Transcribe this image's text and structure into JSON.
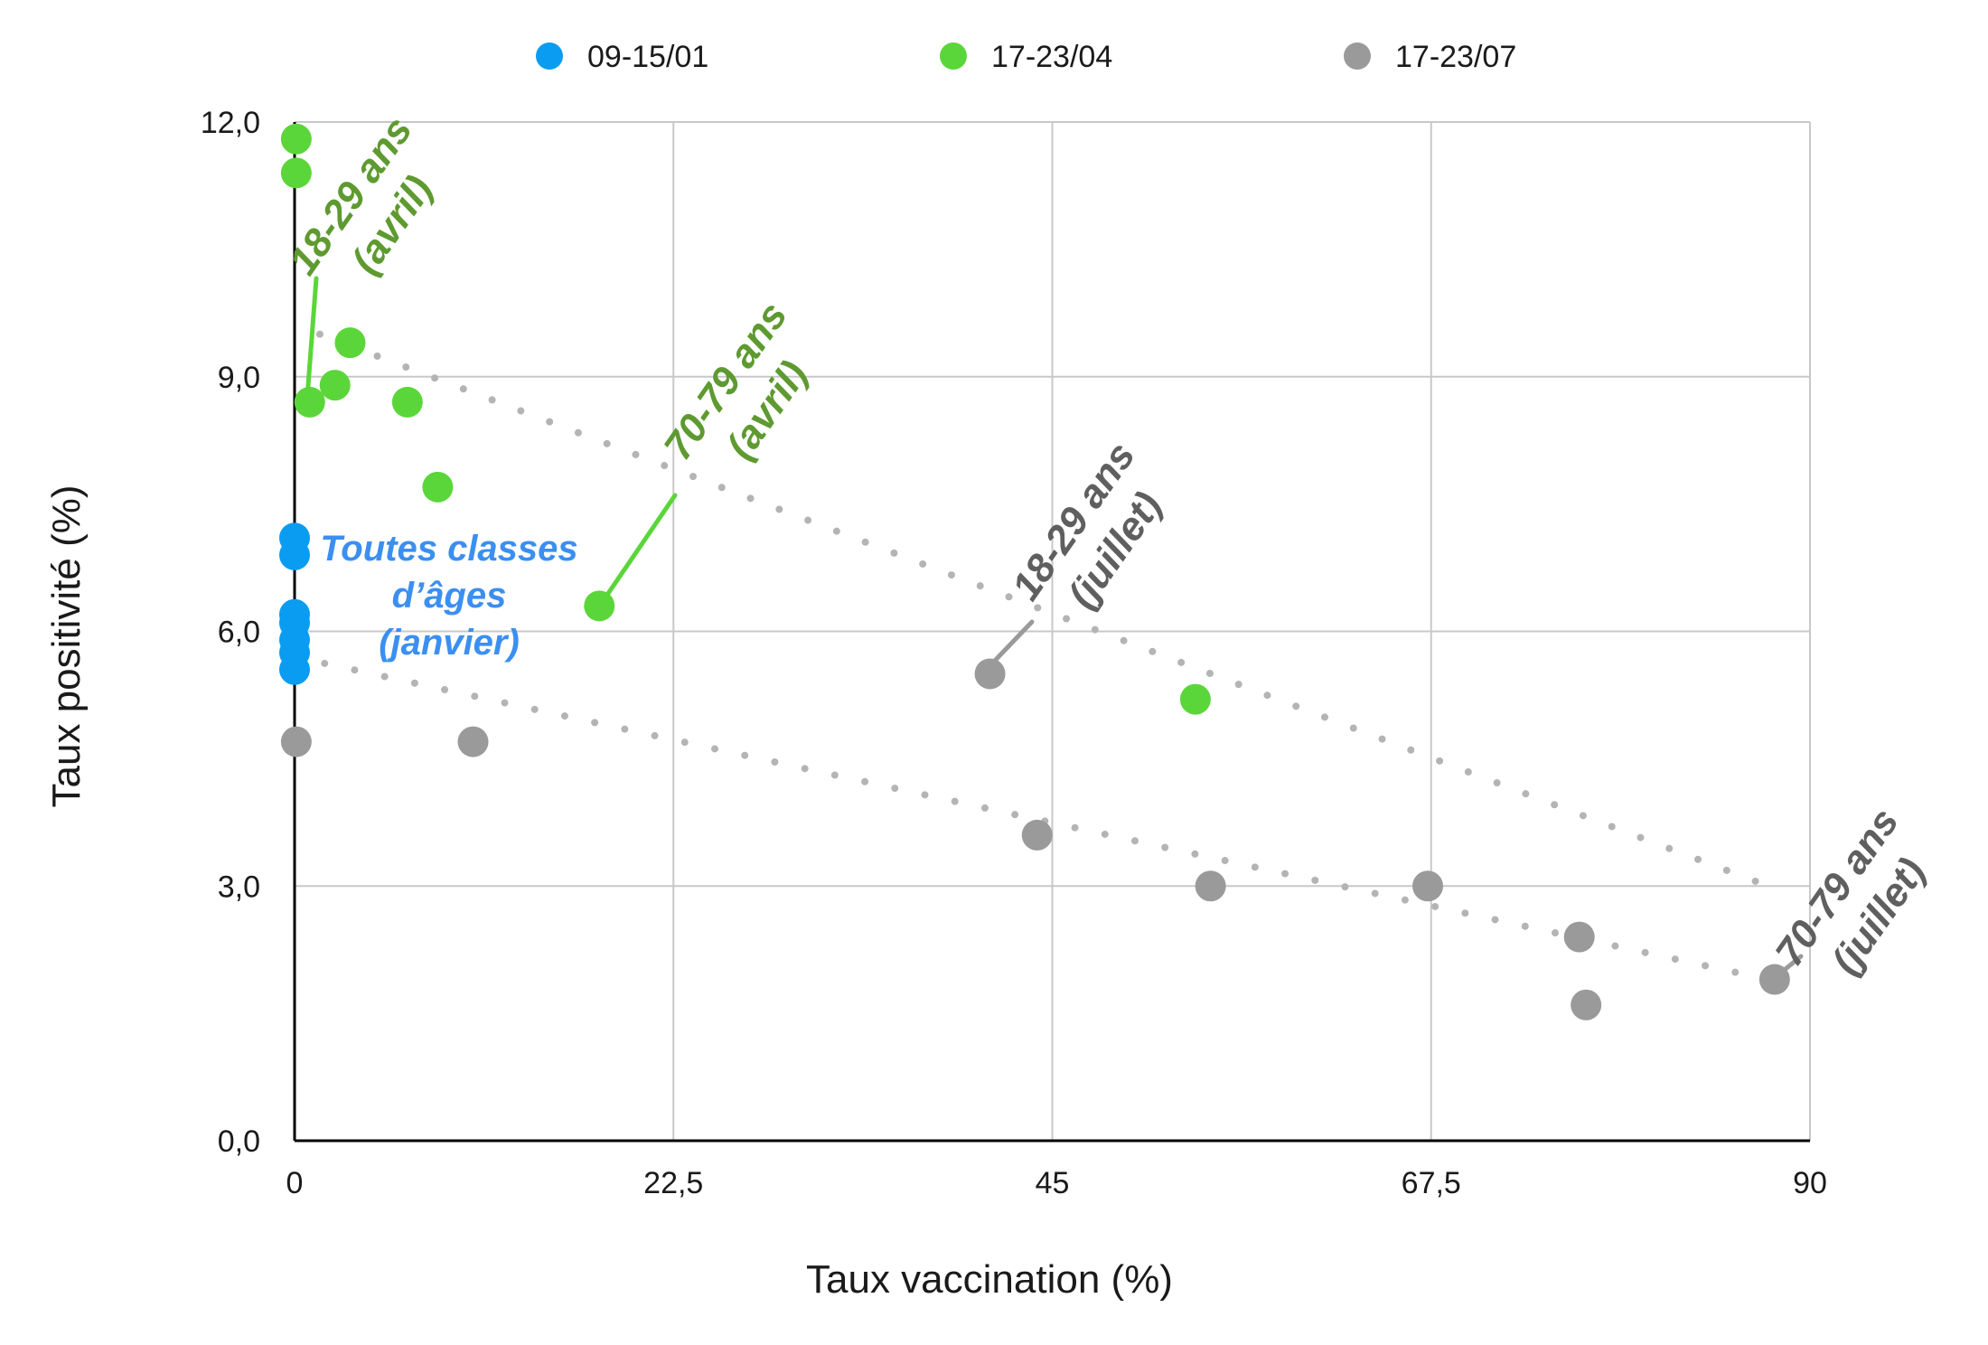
{
  "chart_data": {
    "type": "scatter",
    "title": "",
    "xlabel": "Taux vaccination (%)",
    "ylabel": "Taux positivité (%)",
    "xlim": [
      0,
      90
    ],
    "ylim": [
      0,
      12
    ],
    "x_ticks": [
      "0",
      "22,5",
      "45",
      "67,5",
      "90"
    ],
    "y_ticks": [
      "0,0",
      "3,0",
      "6,0",
      "9,0",
      "12,0"
    ],
    "grid": true,
    "legend_position": "top",
    "series": [
      {
        "name": "09-15/01",
        "color": "#0a9cf0",
        "points": [
          {
            "x": 0,
            "y": 7.1
          },
          {
            "x": 0,
            "y": 6.9
          },
          {
            "x": 0,
            "y": 6.2
          },
          {
            "x": 0,
            "y": 6.1
          },
          {
            "x": 0,
            "y": 5.9
          },
          {
            "x": 0,
            "y": 5.75
          },
          {
            "x": 0,
            "y": 5.55
          }
        ]
      },
      {
        "name": "17-23/04",
        "color": "#5bd63a",
        "points": [
          {
            "x": 0.1,
            "y": 11.8
          },
          {
            "x": 0.1,
            "y": 11.4
          },
          {
            "x": 0.9,
            "y": 8.7
          },
          {
            "x": 2.4,
            "y": 8.9
          },
          {
            "x": 3.3,
            "y": 9.4
          },
          {
            "x": 6.7,
            "y": 8.7
          },
          {
            "x": 8.5,
            "y": 7.7
          },
          {
            "x": 18.1,
            "y": 6.3
          },
          {
            "x": 53.5,
            "y": 5.2
          }
        ]
      },
      {
        "name": "17-23/07",
        "color": "#9a9a9a",
        "points": [
          {
            "x": 0.1,
            "y": 4.7
          },
          {
            "x": 10.6,
            "y": 4.7
          },
          {
            "x": 41.3,
            "y": 5.5
          },
          {
            "x": 44.1,
            "y": 3.6
          },
          {
            "x": 54.4,
            "y": 3.0
          },
          {
            "x": 67.3,
            "y": 3.0
          },
          {
            "x": 76.3,
            "y": 2.4
          },
          {
            "x": 76.7,
            "y": 1.6
          },
          {
            "x": 87.9,
            "y": 1.9
          }
        ]
      }
    ],
    "trendlines": [
      {
        "series": "17-23/04",
        "from": {
          "x": 1.5,
          "y": 9.5
        },
        "to": {
          "x": 87.5,
          "y": 3.0
        }
      },
      {
        "series": "17-23/07",
        "from": {
          "x": 0,
          "y": 5.7
        },
        "to": {
          "x": 87.5,
          "y": 1.9
        }
      }
    ],
    "annotations": [
      {
        "id": "jan",
        "lines": [
          "Toutes classes",
          "d’âges",
          "(janvier)"
        ],
        "color": "#3b8ff0"
      },
      {
        "id": "apr-18",
        "lines": [
          "18-29 ans",
          "(avril)"
        ],
        "color": "#5e9a30"
      },
      {
        "id": "apr-70",
        "lines": [
          "70-79 ans",
          "(avril)"
        ],
        "color": "#5e9a30"
      },
      {
        "id": "jul-18",
        "lines": [
          "18-29 ans",
          "(juillet)"
        ],
        "color": "#5f5f5f"
      },
      {
        "id": "jul-70",
        "lines": [
          "70-79 ans",
          "(juillet)"
        ],
        "color": "#5f5f5f"
      }
    ]
  }
}
